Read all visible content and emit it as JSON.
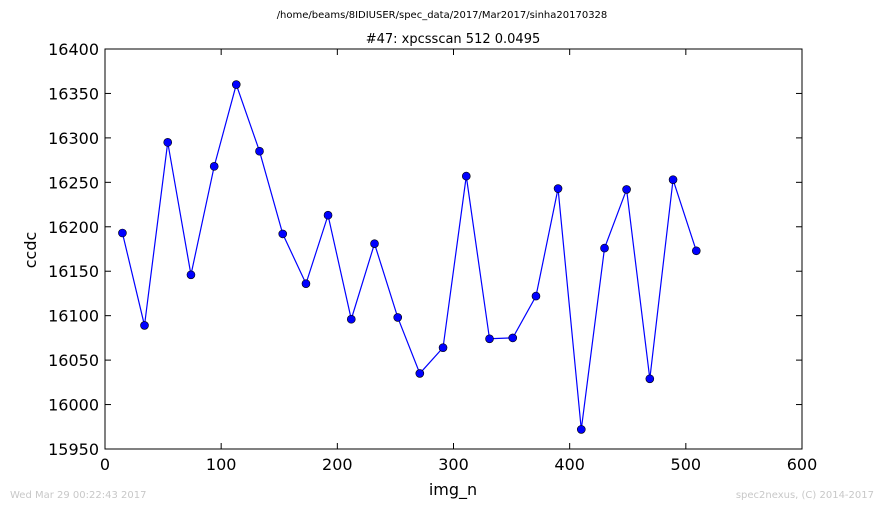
{
  "colors": {
    "series": "#0000ff",
    "axes": "#000000",
    "footer": "#c8c8c8"
  },
  "header": {
    "path": "/home/beams/8IDIUSER/spec_data/2017/Mar2017/sinha20170328",
    "title": "#47: xpcsscan 512 0.0495"
  },
  "footer": {
    "timestamp": "Wed Mar 29 00:22:43 2017",
    "credit": "spec2nexus, (C) 2014-2017"
  },
  "chart_data": {
    "type": "line",
    "title": "#47: xpcsscan 512 0.0495",
    "xlabel": "img_n",
    "ylabel": "ccdc",
    "xlim": [
      0,
      600
    ],
    "ylim": [
      15950,
      16400
    ],
    "xticks": [
      0,
      100,
      200,
      300,
      400,
      500,
      600
    ],
    "yticks": [
      15950,
      16000,
      16050,
      16100,
      16150,
      16200,
      16250,
      16300,
      16350,
      16400
    ],
    "grid": false,
    "marker": "circle",
    "x": [
      15,
      34,
      54,
      74,
      94,
      113,
      133,
      153,
      173,
      192,
      212,
      232,
      252,
      271,
      291,
      311,
      331,
      351,
      371,
      390,
      410,
      430,
      449,
      469,
      489,
      509
    ],
    "y": [
      16193,
      16089,
      16295,
      16146,
      16268,
      16360,
      16285,
      16192,
      16136,
      16213,
      16096,
      16181,
      16098,
      16035,
      16064,
      16257,
      16074,
      16075,
      16122,
      16243,
      15972,
      16176,
      16242,
      16029,
      16253,
      16173
    ]
  }
}
